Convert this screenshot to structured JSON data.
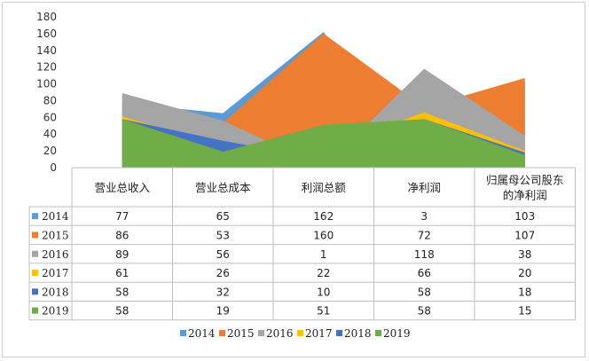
{
  "chart_data": {
    "type": "area",
    "categories": [
      "营业总收入",
      "营业总成本",
      "利润总额",
      "净利润",
      "归属母公司股东的净利润"
    ],
    "category_lines": [
      [
        "营业总收入"
      ],
      [
        "营业总成本"
      ],
      [
        "利润总额"
      ],
      [
        "净利润"
      ],
      [
        "归属母公司股东",
        "的净利润"
      ]
    ],
    "series": [
      {
        "name": "2014",
        "color": "#5b9bd5",
        "values": [
          77,
          65,
          162,
          3,
          103
        ]
      },
      {
        "name": "2015",
        "color": "#ed7d31",
        "values": [
          86,
          53,
          160,
          72,
          107
        ]
      },
      {
        "name": "2016",
        "color": "#a5a5a5",
        "values": [
          89,
          56,
          1,
          118,
          38
        ]
      },
      {
        "name": "2017",
        "color": "#ffc000",
        "values": [
          61,
          26,
          22,
          66,
          20
        ]
      },
      {
        "name": "2018",
        "color": "#4472c4",
        "values": [
          58,
          32,
          10,
          58,
          18
        ]
      },
      {
        "name": "2019",
        "color": "#70ad47",
        "values": [
          58,
          19,
          51,
          58,
          15
        ]
      }
    ],
    "ylim": [
      0,
      180
    ],
    "yticks": [
      0,
      20,
      40,
      60,
      80,
      100,
      120,
      140,
      160,
      180
    ],
    "grid": false,
    "legend": "bottom",
    "data_table": true
  }
}
